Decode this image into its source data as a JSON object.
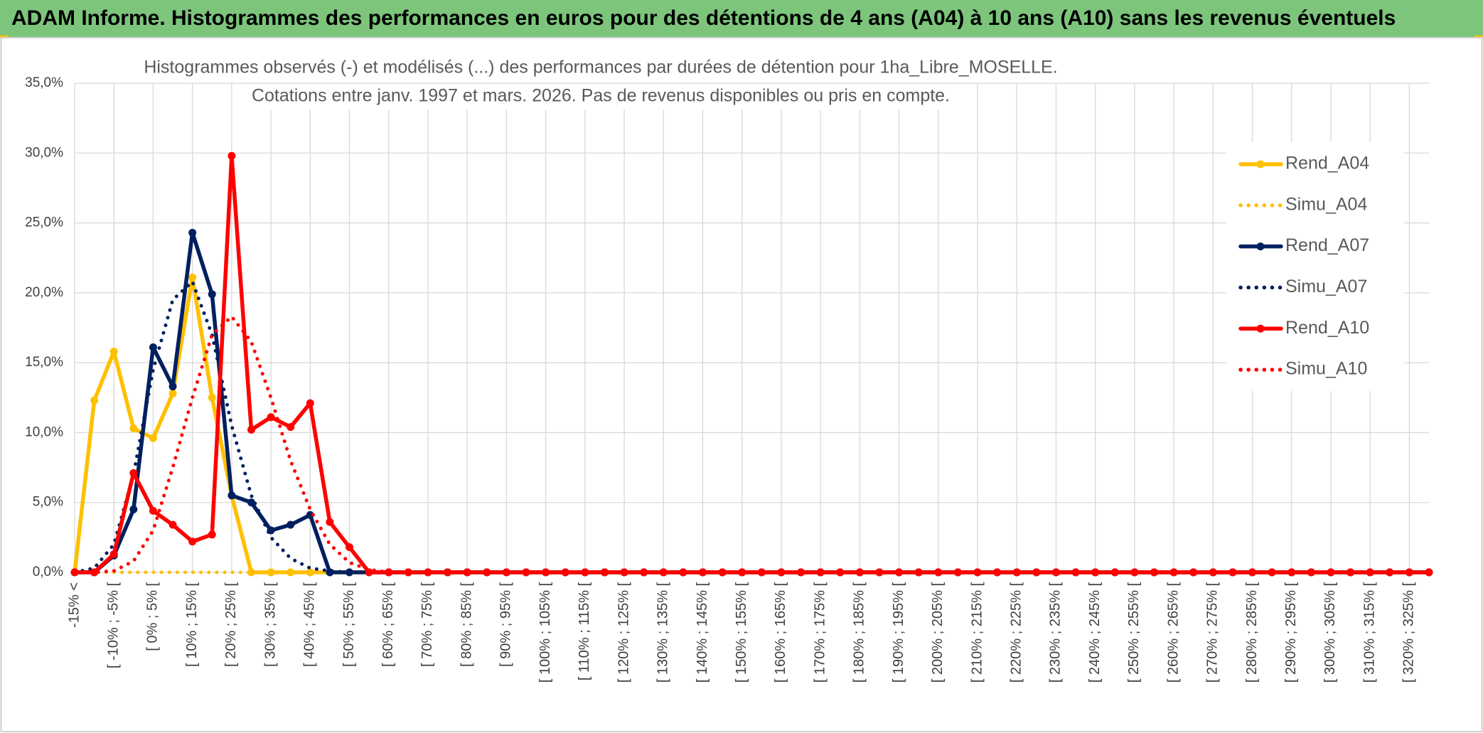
{
  "header": "ADAM Informe. Histogrammes des performances en euros pour des détentions de 4 ans (A04) à 10 ans (A10) sans les revenus éventuels",
  "chart_data": {
    "type": "line",
    "title": [
      "Histogrammes observés (-) et modélisés (...) des performances par durées de détention pour 1ha_Libre_MOSELLE.",
      "Cotations entre janv. 1997 et mars. 2026. Pas de revenus disponibles ou pris en compte."
    ],
    "categories": [
      "-15% <",
      null,
      "[ -10% ; -5% [",
      null,
      "[ 0% ; 5% [",
      null,
      "[ 10% ; 15% [",
      null,
      "[ 20% ; 25% [",
      null,
      "[ 30% ; 35% [",
      null,
      "[ 40% ; 45% [",
      null,
      "[ 50% ; 55% [",
      null,
      "[ 60% ; 65% [",
      null,
      "[ 70% ; 75% [",
      null,
      "[ 80% ; 85% [",
      null,
      "[ 90% ; 95% [",
      null,
      "[ 100% ; 105% [",
      null,
      "[ 110% ; 115% [",
      null,
      "[ 120% ; 125% [",
      null,
      "[ 130% ; 135% [",
      null,
      "[ 140% ; 145% [",
      null,
      "[ 150% ; 155% [",
      null,
      "[ 160% ; 165% [",
      null,
      "[ 170% ; 175% [",
      null,
      "[ 180% ; 185% [",
      null,
      "[ 190% ; 195% [",
      null,
      "[ 200% ; 205% [",
      null,
      "[ 210% ; 215% [",
      null,
      "[ 220% ; 225% [",
      null,
      "[ 230% ; 235% [",
      null,
      "[ 240% ; 245% [",
      null,
      "[ 250% ; 255% [",
      null,
      "[ 260% ; 265% [",
      null,
      "[ 270% ; 275% [",
      null,
      "[ 280% ; 285% [",
      null,
      "[ 290% ; 295% [",
      null,
      "[ 300% ; 305% [",
      null,
      "[ 310% ; 315% [",
      null,
      "[ 320% ; 325% [",
      null
    ],
    "series": [
      {
        "name": "Rend_A04",
        "color": "#ffc000",
        "line_style": "solid",
        "markers": true,
        "values": [
          0,
          12.3,
          15.8,
          10.3,
          9.6,
          12.8,
          21.1,
          12.5,
          5.5,
          0,
          0,
          0,
          0,
          0,
          0,
          0,
          0,
          0,
          0,
          0,
          0,
          0,
          0,
          0,
          0,
          0,
          0,
          0,
          0,
          0,
          0,
          0,
          0,
          0,
          0,
          0,
          0,
          0,
          0,
          0,
          0,
          0,
          0,
          0,
          0,
          0,
          0,
          0,
          0,
          0,
          0,
          0,
          0,
          0,
          0,
          0,
          0,
          0,
          0,
          0,
          0,
          0,
          0,
          0,
          0,
          0,
          0,
          0,
          0,
          0
        ]
      },
      {
        "name": "Simu_A04",
        "color": "#ffc000",
        "line_style": "dotted",
        "markers": false,
        "values": [
          0,
          0,
          0,
          0,
          0,
          0,
          0,
          0,
          0,
          0,
          0,
          0,
          0,
          0,
          0,
          0,
          0,
          0,
          0,
          0,
          0,
          0,
          0,
          0,
          0,
          0,
          0,
          0,
          0,
          0,
          0,
          0,
          0,
          0,
          0,
          0,
          0,
          0,
          0,
          0,
          0,
          0,
          0,
          0,
          0,
          0,
          0,
          0,
          0,
          0,
          0,
          0,
          0,
          0,
          0,
          0,
          0,
          0,
          0,
          0,
          0,
          0,
          0,
          0,
          0,
          0,
          0,
          0,
          0,
          0
        ]
      },
      {
        "name": "Rend_A07",
        "color": "#002060",
        "line_style": "solid",
        "markers": true,
        "values": [
          0,
          0,
          1.2,
          4.5,
          16.1,
          13.3,
          24.3,
          19.9,
          5.5,
          5.0,
          3.0,
          3.4,
          4.1,
          0,
          0,
          0,
          0,
          0,
          0,
          0,
          0,
          0,
          0,
          0,
          0,
          0,
          0,
          0,
          0,
          0,
          0,
          0,
          0,
          0,
          0,
          0,
          0,
          0,
          0,
          0,
          0,
          0,
          0,
          0,
          0,
          0,
          0,
          0,
          0,
          0,
          0,
          0,
          0,
          0,
          0,
          0,
          0,
          0,
          0,
          0,
          0,
          0,
          0,
          0,
          0,
          0,
          0,
          0,
          0,
          0
        ]
      },
      {
        "name": "Simu_A07",
        "color": "#002060",
        "line_style": "dotted",
        "markers": false,
        "values": [
          0,
          0.3,
          2,
          7,
          14.5,
          19.5,
          20.8,
          17,
          10.5,
          5.5,
          2.5,
          1,
          0.3,
          0.1,
          0,
          0,
          0,
          0,
          0,
          0,
          0,
          0,
          0,
          0,
          0,
          0,
          0,
          0,
          0,
          0,
          0,
          0,
          0,
          0,
          0,
          0,
          0,
          0,
          0,
          0,
          0,
          0,
          0,
          0,
          0,
          0,
          0,
          0,
          0,
          0,
          0,
          0,
          0,
          0,
          0,
          0,
          0,
          0,
          0,
          0,
          0,
          0,
          0,
          0,
          0,
          0,
          0,
          0,
          0,
          0
        ]
      },
      {
        "name": "Rend_A10",
        "color": "#ff0000",
        "line_style": "solid",
        "markers": true,
        "values": [
          0,
          0,
          1.3,
          7.1,
          4.4,
          3.4,
          2.2,
          2.7,
          29.8,
          10.2,
          11.1,
          10.4,
          12.1,
          3.6,
          1.8,
          0,
          0,
          0,
          0,
          0,
          0,
          0,
          0,
          0,
          0,
          0,
          0,
          0,
          0,
          0,
          0,
          0,
          0,
          0,
          0,
          0,
          0,
          0,
          0,
          0,
          0,
          0,
          0,
          0,
          0,
          0,
          0,
          0,
          0,
          0,
          0,
          0,
          0,
          0,
          0,
          0,
          0,
          0,
          0,
          0,
          0,
          0,
          0,
          0,
          0,
          0,
          0,
          0,
          0,
          0
        ]
      },
      {
        "name": "Simu_A10",
        "color": "#ff0000",
        "line_style": "dotted",
        "markers": false,
        "values": [
          0,
          0,
          0.1,
          0.8,
          3,
          7.5,
          12.5,
          17,
          18.3,
          16.5,
          12.5,
          8,
          4.5,
          2,
          0.7,
          0.2,
          0,
          0,
          0,
          0,
          0,
          0,
          0,
          0,
          0,
          0,
          0,
          0,
          0,
          0,
          0,
          0,
          0,
          0,
          0,
          0,
          0,
          0,
          0,
          0,
          0,
          0,
          0,
          0,
          0,
          0,
          0,
          0,
          0,
          0,
          0,
          0,
          0,
          0,
          0,
          0,
          0,
          0,
          0,
          0,
          0,
          0,
          0,
          0,
          0,
          0,
          0,
          0,
          0,
          0
        ]
      }
    ],
    "ylim": [
      0,
      35
    ],
    "yticks": [
      {
        "value": 0,
        "label": "0,0%"
      },
      {
        "value": 5,
        "label": "5,0%"
      },
      {
        "value": 10,
        "label": "10,0%"
      },
      {
        "value": 15,
        "label": "15,0%"
      },
      {
        "value": 20,
        "label": "20,0%"
      },
      {
        "value": 25,
        "label": "25,0%"
      },
      {
        "value": 30,
        "label": "30,0%"
      },
      {
        "value": 35,
        "label": "35,0%"
      }
    ],
    "grid": true,
    "legend": "right"
  }
}
